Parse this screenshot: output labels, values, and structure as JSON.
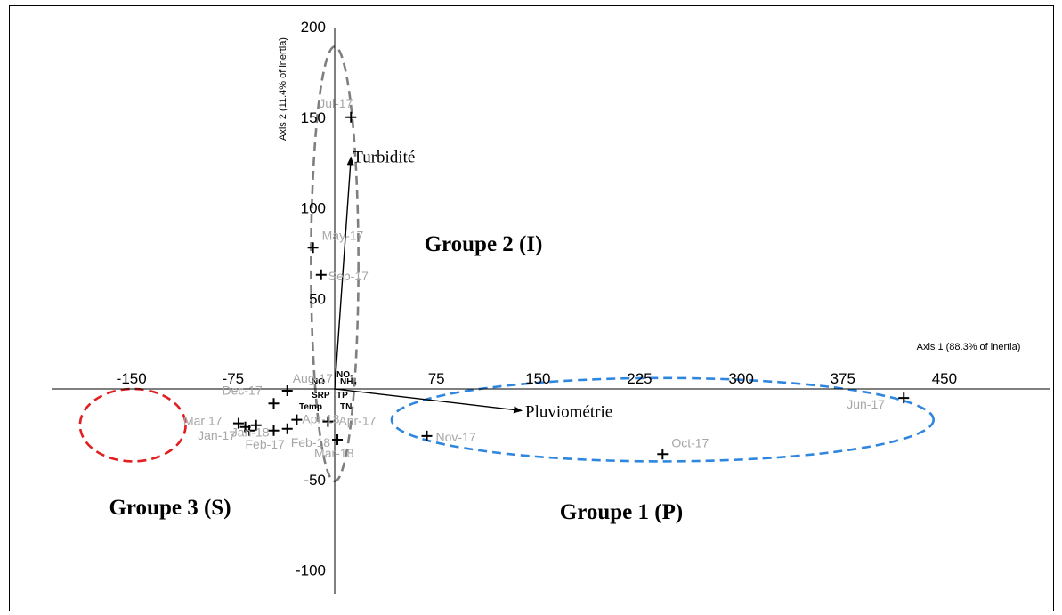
{
  "chart_data": {
    "type": "scatter",
    "xlabel": "Axis 1 (88.3% of inertia)",
    "ylabel": "Axis 2 (11.4% of inertia)",
    "xlim": [
      -195,
      490
    ],
    "ylim": [
      -112,
      203
    ],
    "xticks": [
      -150,
      -75,
      75,
      150,
      225,
      300,
      375,
      450
    ],
    "yticks": [
      200,
      150,
      100,
      50,
      -50,
      -100
    ],
    "points": [
      {
        "label": "Jul-17",
        "x": 12,
        "y": 150
      },
      {
        "label": "May-17",
        "x": -16,
        "y": 78
      },
      {
        "label": "Sep-17",
        "x": -10,
        "y": 63
      },
      {
        "label": "Aug-17",
        "x": -35,
        "y": -1
      },
      {
        "label": "Dec-17",
        "x": -45,
        "y": -8
      },
      {
        "label": "Apr-18",
        "x": -28,
        "y": -17
      },
      {
        "label": "Jan-18",
        "x": -58,
        "y": -20
      },
      {
        "label": "Mar 17",
        "x": -71,
        "y": -19
      },
      {
        "label": "Jan-17",
        "x": -63,
        "y": -23
      },
      {
        "label": "Feb-17",
        "x": -45,
        "y": -23
      },
      {
        "label": "Feb-18",
        "x": -35,
        "y": -22
      },
      {
        "label": "",
        "x": -66,
        "y": -21
      },
      {
        "label": "Apr-17",
        "x": -5,
        "y": -18
      },
      {
        "label": "Mar-18",
        "x": 2,
        "y": -28
      },
      {
        "label": "Nov-17",
        "x": 68,
        "y": -26
      },
      {
        "label": "Oct-17",
        "x": 242,
        "y": -36
      },
      {
        "label": "Jun-17",
        "x": 420,
        "y": -5
      }
    ],
    "vectors": [
      {
        "label": "Turbidité",
        "x": 12,
        "y": 128
      },
      {
        "label": "Pluviométrie",
        "x": 138,
        "y": -12
      }
    ],
    "small_variable_labels": [
      "NO",
      "NO₃",
      "NH₄",
      "SRP",
      "TP",
      "Temp",
      "TN"
    ],
    "groups": [
      {
        "label": "Groupe 2 (I)",
        "color": "#7f7f7f",
        "cx": 0,
        "cy": 69,
        "rx": 35,
        "ry": 120
      },
      {
        "label": "Groupe 1 (P)",
        "color": "#2e86de",
        "cx": 242,
        "cy": -17,
        "rx": 400,
        "ry": 23
      },
      {
        "label": "Groupe 3 (S)",
        "color": "#e02020",
        "cx": -149,
        "cy": -20,
        "rx": 78,
        "ry": 20
      }
    ]
  }
}
